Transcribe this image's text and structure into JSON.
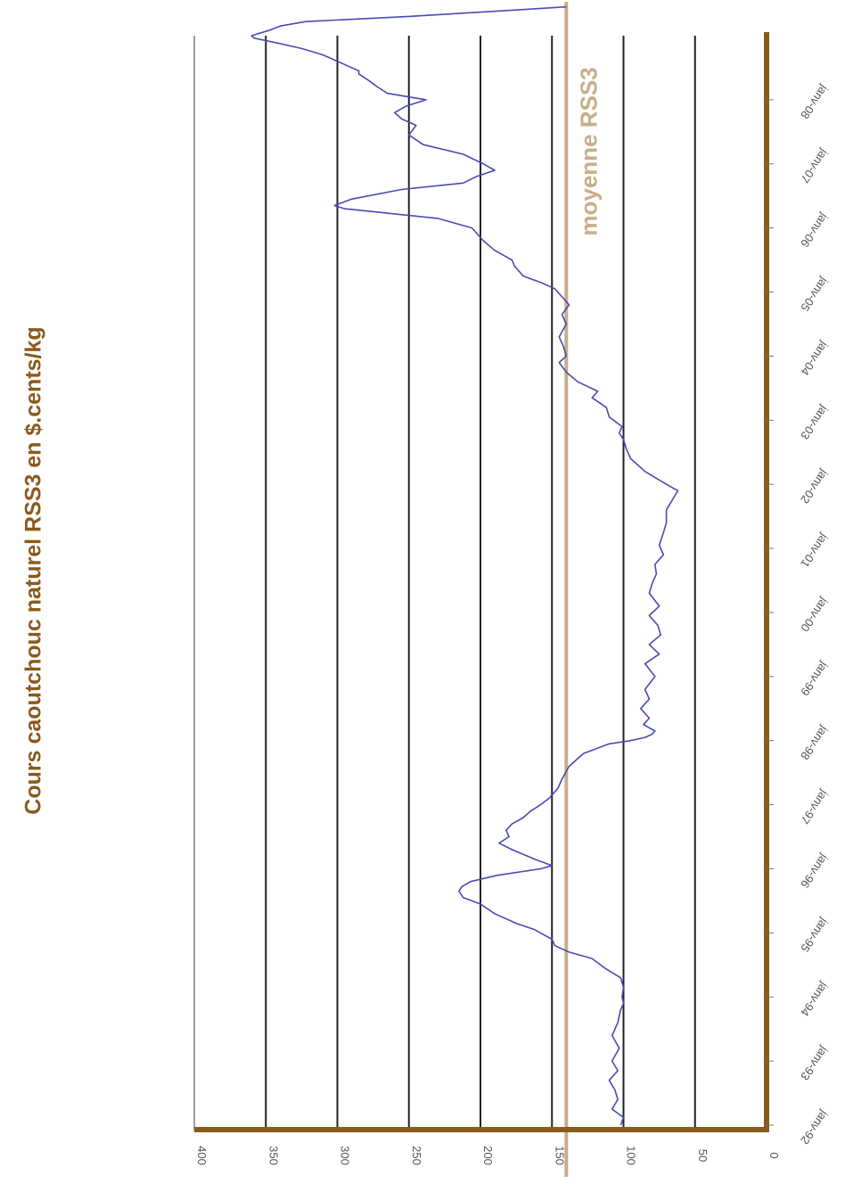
{
  "chart_data": {
    "type": "line",
    "title": "Cours caoutchouc naturel RSS3 en $.cents/kg",
    "orientation": "rotated-90-ccw",
    "ylim": [
      0,
      400
    ],
    "y_ticks": [
      "0",
      "50",
      "100",
      "150",
      "200",
      "250",
      "300",
      "350",
      "400"
    ],
    "x_ticks": [
      "janv-92",
      "janv-93",
      "janv-94",
      "janv-95",
      "janv-96",
      "janv-97",
      "janv-98",
      "janv-99",
      "janv-00",
      "janv-01",
      "janv-02",
      "janv-03",
      "janv-04",
      "janv-05",
      "janv-06",
      "janv-07",
      "janv-08"
    ],
    "grid": true,
    "reference_line": {
      "label": "moyenne RSS3",
      "value": 140
    },
    "colors": {
      "series": "#4a4ab4",
      "axis": "#8a5a1c",
      "reference": "#c8ad88",
      "grid": "#222222",
      "title": "#8a5a1c"
    },
    "series": [
      {
        "points": [
          [
            0,
            102
          ],
          [
            0.12,
            100
          ],
          [
            0.25,
            108
          ],
          [
            0.4,
            104
          ],
          [
            0.55,
            106
          ],
          [
            0.7,
            110
          ],
          [
            0.85,
            104
          ],
          [
            1.0,
            108
          ],
          [
            1.2,
            103
          ],
          [
            1.4,
            108
          ],
          [
            1.6,
            104
          ],
          [
            1.8,
            102
          ],
          [
            1.9,
            100
          ],
          [
            2.0,
            101
          ],
          [
            2.15,
            100
          ],
          [
            2.3,
            102
          ],
          [
            2.45,
            113
          ],
          [
            2.6,
            122
          ],
          [
            2.7,
            138
          ],
          [
            2.8,
            148
          ],
          [
            2.9,
            150
          ],
          [
            3.0,
            158
          ],
          [
            3.05,
            162
          ],
          [
            3.15,
            175
          ],
          [
            3.3,
            190
          ],
          [
            3.45,
            200
          ],
          [
            3.55,
            212
          ],
          [
            3.65,
            215
          ],
          [
            3.72,
            213
          ],
          [
            3.8,
            207
          ],
          [
            3.9,
            188
          ],
          [
            4.0,
            158
          ],
          [
            4.05,
            150
          ],
          [
            4.15,
            162
          ],
          [
            4.3,
            178
          ],
          [
            4.4,
            187
          ],
          [
            4.5,
            180
          ],
          [
            4.6,
            182
          ],
          [
            4.7,
            178
          ],
          [
            4.8,
            170
          ],
          [
            4.9,
            165
          ],
          [
            5.0,
            158
          ],
          [
            5.1,
            152
          ],
          [
            5.25,
            146
          ],
          [
            5.4,
            143
          ],
          [
            5.6,
            138
          ],
          [
            5.8,
            128
          ],
          [
            5.95,
            110
          ],
          [
            6.0,
            95
          ],
          [
            6.05,
            85
          ],
          [
            6.1,
            80
          ],
          [
            6.15,
            78
          ],
          [
            6.25,
            86
          ],
          [
            6.35,
            82
          ],
          [
            6.5,
            88
          ],
          [
            6.65,
            82
          ],
          [
            6.8,
            85
          ],
          [
            7.0,
            78
          ],
          [
            7.2,
            85
          ],
          [
            7.35,
            75
          ],
          [
            7.5,
            82
          ],
          [
            7.65,
            74
          ],
          [
            7.8,
            76
          ],
          [
            7.95,
            82
          ],
          [
            8.1,
            75
          ],
          [
            8.3,
            82
          ],
          [
            8.45,
            80
          ],
          [
            8.6,
            77
          ],
          [
            8.75,
            78
          ],
          [
            8.9,
            72
          ],
          [
            9.05,
            75
          ],
          [
            9.25,
            72
          ],
          [
            9.4,
            70
          ],
          [
            9.6,
            70
          ],
          [
            9.75,
            66
          ],
          [
            9.9,
            62
          ],
          [
            10.0,
            70
          ],
          [
            10.2,
            85
          ],
          [
            10.4,
            95
          ],
          [
            10.55,
            98
          ],
          [
            10.7,
            100
          ],
          [
            10.8,
            103
          ],
          [
            10.9,
            101
          ],
          [
            11.05,
            110
          ],
          [
            11.2,
            112
          ],
          [
            11.35,
            122
          ],
          [
            11.45,
            118
          ],
          [
            11.6,
            132
          ],
          [
            11.75,
            140
          ],
          [
            11.9,
            145
          ],
          [
            12.0,
            140
          ],
          [
            12.15,
            142
          ],
          [
            12.3,
            145
          ],
          [
            12.5,
            140
          ],
          [
            12.65,
            143
          ],
          [
            12.8,
            138
          ],
          [
            12.95,
            144
          ],
          [
            13.05,
            148
          ],
          [
            13.15,
            158
          ],
          [
            13.25,
            170
          ],
          [
            13.4,
            176
          ],
          [
            13.5,
            178
          ],
          [
            13.65,
            190
          ],
          [
            13.8,
            198
          ],
          [
            14.0,
            206
          ],
          [
            14.15,
            230
          ],
          [
            14.3,
            295
          ],
          [
            14.35,
            302
          ],
          [
            14.45,
            290
          ],
          [
            14.6,
            255
          ],
          [
            14.7,
            212
          ],
          [
            14.8,
            203
          ],
          [
            14.9,
            190
          ],
          [
            15.0,
            198
          ],
          [
            15.15,
            212
          ],
          [
            15.3,
            240
          ],
          [
            15.45,
            250
          ],
          [
            15.6,
            245
          ],
          [
            15.7,
            255
          ],
          [
            15.8,
            260
          ],
          [
            15.9,
            252
          ],
          [
            16.0,
            238
          ],
          [
            16.1,
            265
          ],
          [
            16.2,
            272
          ],
          [
            16.3,
            278
          ],
          [
            16.4,
            285
          ],
          [
            16.45,
            285
          ],
          [
            16.55,
            295
          ],
          [
            16.7,
            310
          ],
          [
            16.8,
            325
          ],
          [
            16.9,
            345
          ],
          [
            16.96,
            358
          ],
          [
            17.0,
            360
          ],
          [
            17.08,
            348
          ],
          [
            17.15,
            340
          ],
          [
            17.22,
            322
          ],
          [
            17.3,
            250
          ],
          [
            17.4,
            175
          ],
          [
            17.45,
            140
          ]
        ]
      }
    ]
  }
}
